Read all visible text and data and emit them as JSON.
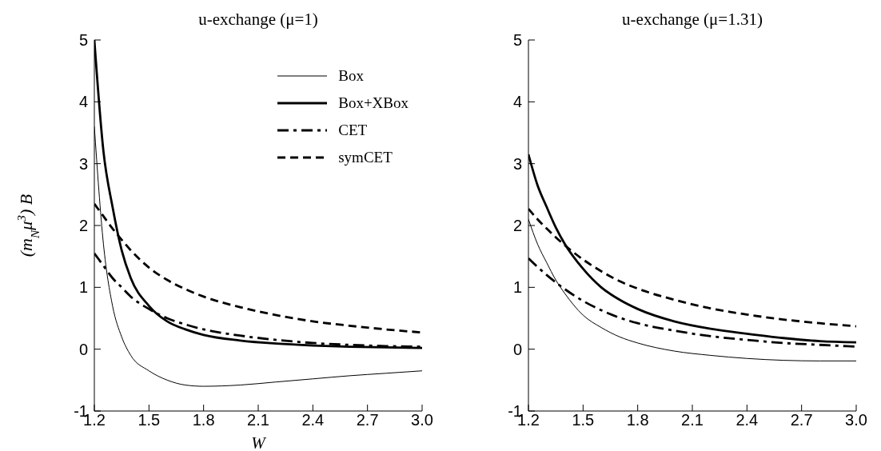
{
  "chart_data": [
    {
      "type": "line",
      "title": "u-exchange (μ=1)",
      "xlabel": "W",
      "ylabel": "(m$_{N}$μ$^{3}$) B",
      "x": [
        1.2,
        1.25,
        1.3,
        1.35,
        1.4,
        1.5,
        1.6,
        1.7,
        1.8,
        2.0,
        2.2,
        2.4,
        2.6,
        2.8,
        3.0
      ],
      "xlim": [
        1.2,
        3.0
      ],
      "xticks": [
        1.2,
        1.5,
        1.8,
        2.1,
        2.4,
        2.7,
        {
          "value": 3.0,
          "label": "3.0"
        }
      ],
      "ylim": [
        -1,
        5
      ],
      "yticks": [
        -1,
        0,
        1,
        2,
        3,
        4,
        5
      ],
      "legend": "top right",
      "series": [
        {
          "name": "Box",
          "color": "#000000",
          "line_style": "solid",
          "values": [
            3.6,
            1.7,
            0.7,
            0.2,
            -0.1,
            -0.35,
            -0.5,
            -0.58,
            -0.6,
            -0.58,
            -0.53,
            -0.48,
            -0.43,
            -0.39,
            -0.35
          ]
        },
        {
          "name": "Box+XBox",
          "color": "#000000",
          "line_style": "solid",
          "values": [
            5.0,
            3.2,
            2.3,
            1.6,
            1.15,
            0.7,
            0.45,
            0.32,
            0.23,
            0.14,
            0.09,
            0.06,
            0.04,
            0.03,
            0.02
          ]
        },
        {
          "name": "CET",
          "color": "#000000",
          "line_style": "dashdot",
          "values": [
            1.55,
            1.35,
            1.15,
            1.0,
            0.85,
            0.65,
            0.5,
            0.4,
            0.32,
            0.22,
            0.15,
            0.1,
            0.07,
            0.05,
            0.04
          ]
        },
        {
          "name": "symCET",
          "color": "#000000",
          "line_style": "dashed",
          "values": [
            2.35,
            2.15,
            1.95,
            1.77,
            1.6,
            1.32,
            1.12,
            0.97,
            0.85,
            0.68,
            0.55,
            0.45,
            0.38,
            0.32,
            0.27
          ]
        }
      ]
    },
    {
      "type": "line",
      "title": "u-exchange (μ=1.31)",
      "x": [
        1.2,
        1.25,
        1.3,
        1.35,
        1.4,
        1.5,
        1.6,
        1.7,
        1.8,
        2.0,
        2.2,
        2.4,
        2.6,
        2.8,
        3.0
      ],
      "xlim": [
        1.2,
        3.0
      ],
      "xticks": [
        1.2,
        1.5,
        1.8,
        2.1,
        2.4,
        2.7,
        {
          "value": 3.0,
          "label": "3.0"
        }
      ],
      "ylim": [
        -1,
        5
      ],
      "yticks": [
        -1,
        0,
        1,
        2,
        3,
        4,
        5
      ],
      "series": [
        {
          "color": "#000000",
          "line_style": "solid",
          "values": [
            2.1,
            1.7,
            1.4,
            1.12,
            0.9,
            0.55,
            0.35,
            0.2,
            0.1,
            -0.03,
            -0.1,
            -0.15,
            -0.18,
            -0.19,
            -0.19
          ]
        },
        {
          "color": "#000000",
          "line_style": "solid",
          "values": [
            3.15,
            2.65,
            2.3,
            1.97,
            1.7,
            1.3,
            1.0,
            0.8,
            0.65,
            0.45,
            0.33,
            0.25,
            0.18,
            0.13,
            0.11
          ]
        },
        {
          "color": "#000000",
          "line_style": "dashdot",
          "values": [
            1.47,
            1.33,
            1.2,
            1.08,
            0.97,
            0.78,
            0.63,
            0.51,
            0.42,
            0.3,
            0.21,
            0.15,
            0.1,
            0.07,
            0.04
          ]
        },
        {
          "color": "#000000",
          "line_style": "dashed",
          "values": [
            2.27,
            2.1,
            1.95,
            1.81,
            1.68,
            1.45,
            1.26,
            1.1,
            0.98,
            0.8,
            0.66,
            0.56,
            0.48,
            0.42,
            0.37
          ]
        }
      ]
    }
  ]
}
